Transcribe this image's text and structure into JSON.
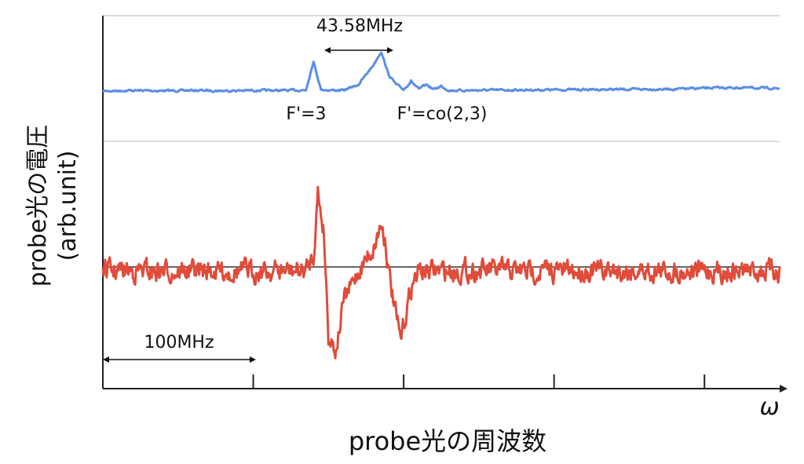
{
  "chart_data": {
    "type": "line",
    "title": "",
    "xlabel": "probe光の周波数",
    "x_axis_symbol": "ω",
    "ylabel": "probe光の電圧\n(arb.unit)",
    "ylabel_lines": [
      "probe光の電圧",
      "(arb.unit)"
    ],
    "xlim": [
      0,
      450
    ],
    "x_ticks": [
      0,
      100,
      200,
      300,
      400
    ],
    "grid": true,
    "legend": "none",
    "series": [
      {
        "color": "#5a8ee6",
        "keypoints": {
          "x": [
            0,
            20,
            40,
            60,
            80,
            100,
            120,
            135,
            140,
            145,
            150,
            160,
            170,
            180,
            185,
            190,
            195,
            200,
            205,
            210,
            215,
            220,
            225,
            230,
            240,
            260,
            300,
            340,
            380,
            410,
            430,
            450
          ],
          "y": [
            0.0,
            0.02,
            0.01,
            0.02,
            0.01,
            0.02,
            0.02,
            0.03,
            0.9,
            0.05,
            0.03,
            0.02,
            0.2,
            0.8,
            1.2,
            0.5,
            0.2,
            0.05,
            0.3,
            0.05,
            0.2,
            0.05,
            0.15,
            0.02,
            0.02,
            0.03,
            0.04,
            0.05,
            0.06,
            0.1,
            0.1,
            0.08
          ]
        }
      },
      {
        "color": "#e04b3a",
        "keypoints": {
          "x": [
            0,
            50,
            100,
            135,
            140,
            143,
            147,
            150,
            155,
            160,
            170,
            180,
            185,
            188,
            190,
            195,
            198,
            205,
            210,
            250,
            300,
            350,
            400,
            450
          ],
          "y": [
            0.0,
            0.0,
            0.0,
            0.0,
            0.2,
            1.0,
            0.5,
            -0.8,
            -1.0,
            -0.4,
            0.0,
            0.3,
            0.6,
            0.4,
            0.0,
            -0.6,
            -0.9,
            -0.2,
            0.0,
            0.0,
            0.0,
            0.0,
            0.0,
            0.0
          ]
        }
      }
    ],
    "annotations": {
      "peak_separation": "43.58MHz",
      "peak1_label": "F'=3",
      "peak2_label": "F'=co(2,3)",
      "scale_label": "100MHz"
    }
  }
}
